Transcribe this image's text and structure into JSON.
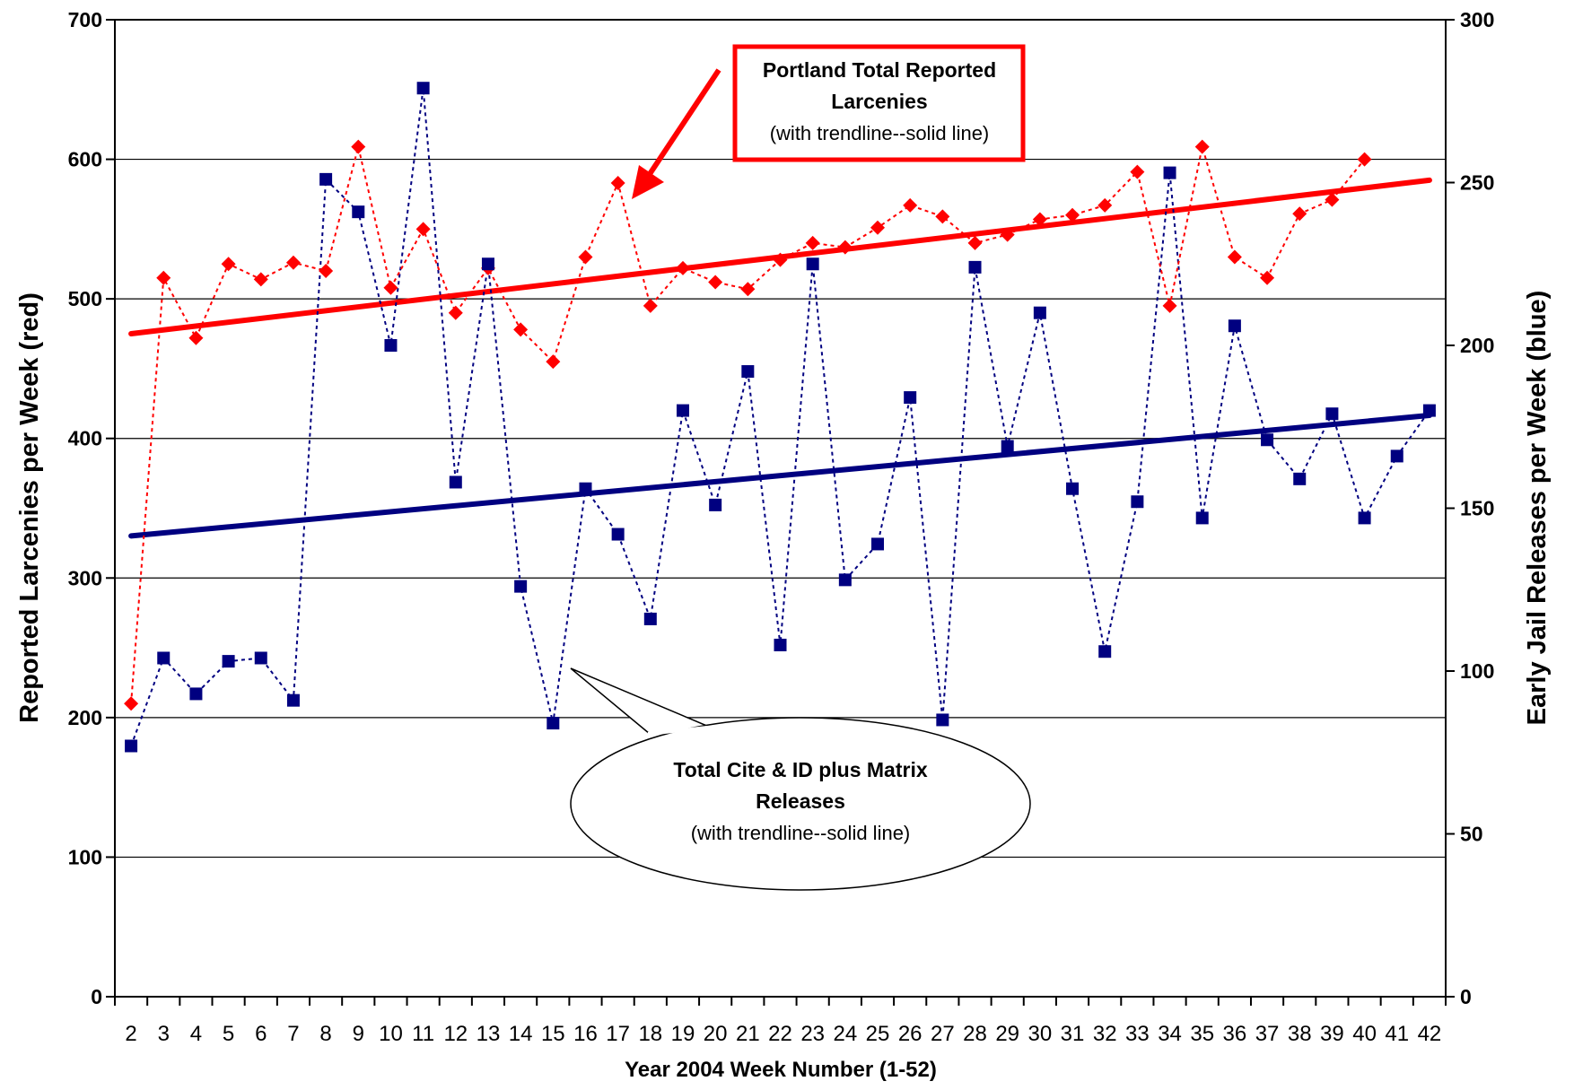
{
  "chart_data": {
    "type": "line",
    "xlabel": "Year 2004 Week Number (1-52)",
    "ylabel_left": "Reported Larcenies per Week (red)",
    "ylabel_right": "Early Jail Releases per Week (blue)",
    "x": [
      2,
      3,
      4,
      5,
      6,
      7,
      8,
      9,
      10,
      11,
      12,
      13,
      14,
      15,
      16,
      17,
      18,
      19,
      20,
      21,
      22,
      23,
      24,
      25,
      26,
      27,
      28,
      29,
      30,
      31,
      32,
      33,
      34,
      35,
      36,
      37,
      38,
      39,
      40,
      41,
      42
    ],
    "xlim": [
      1.5,
      42.5
    ],
    "ylim_left": [
      0,
      700
    ],
    "ylim_right": [
      0,
      300
    ],
    "yticks_left": [
      0,
      100,
      200,
      300,
      400,
      500,
      600,
      700
    ],
    "yticks_right": [
      0,
      50,
      100,
      150,
      200,
      250,
      300
    ],
    "grid": true,
    "series": [
      {
        "axis": "left",
        "color": "#ff0000",
        "marker": "diamond",
        "values": [
          210,
          515,
          472,
          525,
          514,
          526,
          520,
          609,
          508,
          550,
          490,
          522,
          478,
          455,
          530,
          583,
          495,
          522,
          512,
          507,
          528,
          540,
          537,
          551,
          567,
          559,
          540,
          546,
          557,
          560,
          567,
          591,
          495,
          609,
          530,
          515,
          561,
          571,
          600,
          null,
          null
        ],
        "trendline": {
          "start": 475,
          "end": 585
        }
      },
      {
        "axis": "right",
        "color": "#000080",
        "marker": "square",
        "values": [
          77,
          104,
          93,
          103,
          104,
          91,
          251,
          241,
          200,
          279,
          158,
          225,
          126,
          84,
          156,
          142,
          116,
          180,
          151,
          192,
          108,
          225,
          128,
          139,
          184,
          85,
          224,
          169,
          210,
          156,
          106,
          152,
          253,
          147,
          206,
          171,
          159,
          179,
          147,
          166,
          180
        ],
        "trendline": {
          "start": 141.5,
          "end": 178.5
        }
      }
    ],
    "annotations": [
      {
        "kind": "rect-callout",
        "line1": "Portland Total Reported",
        "line2": "Larcenies",
        "line3": "(with trendline--solid line)",
        "color": "#ff0000"
      },
      {
        "kind": "speech-bubble",
        "line1": "Total Cite & ID plus Matrix",
        "line2": "Releases",
        "line3": "(with trendline--solid line)"
      }
    ]
  }
}
